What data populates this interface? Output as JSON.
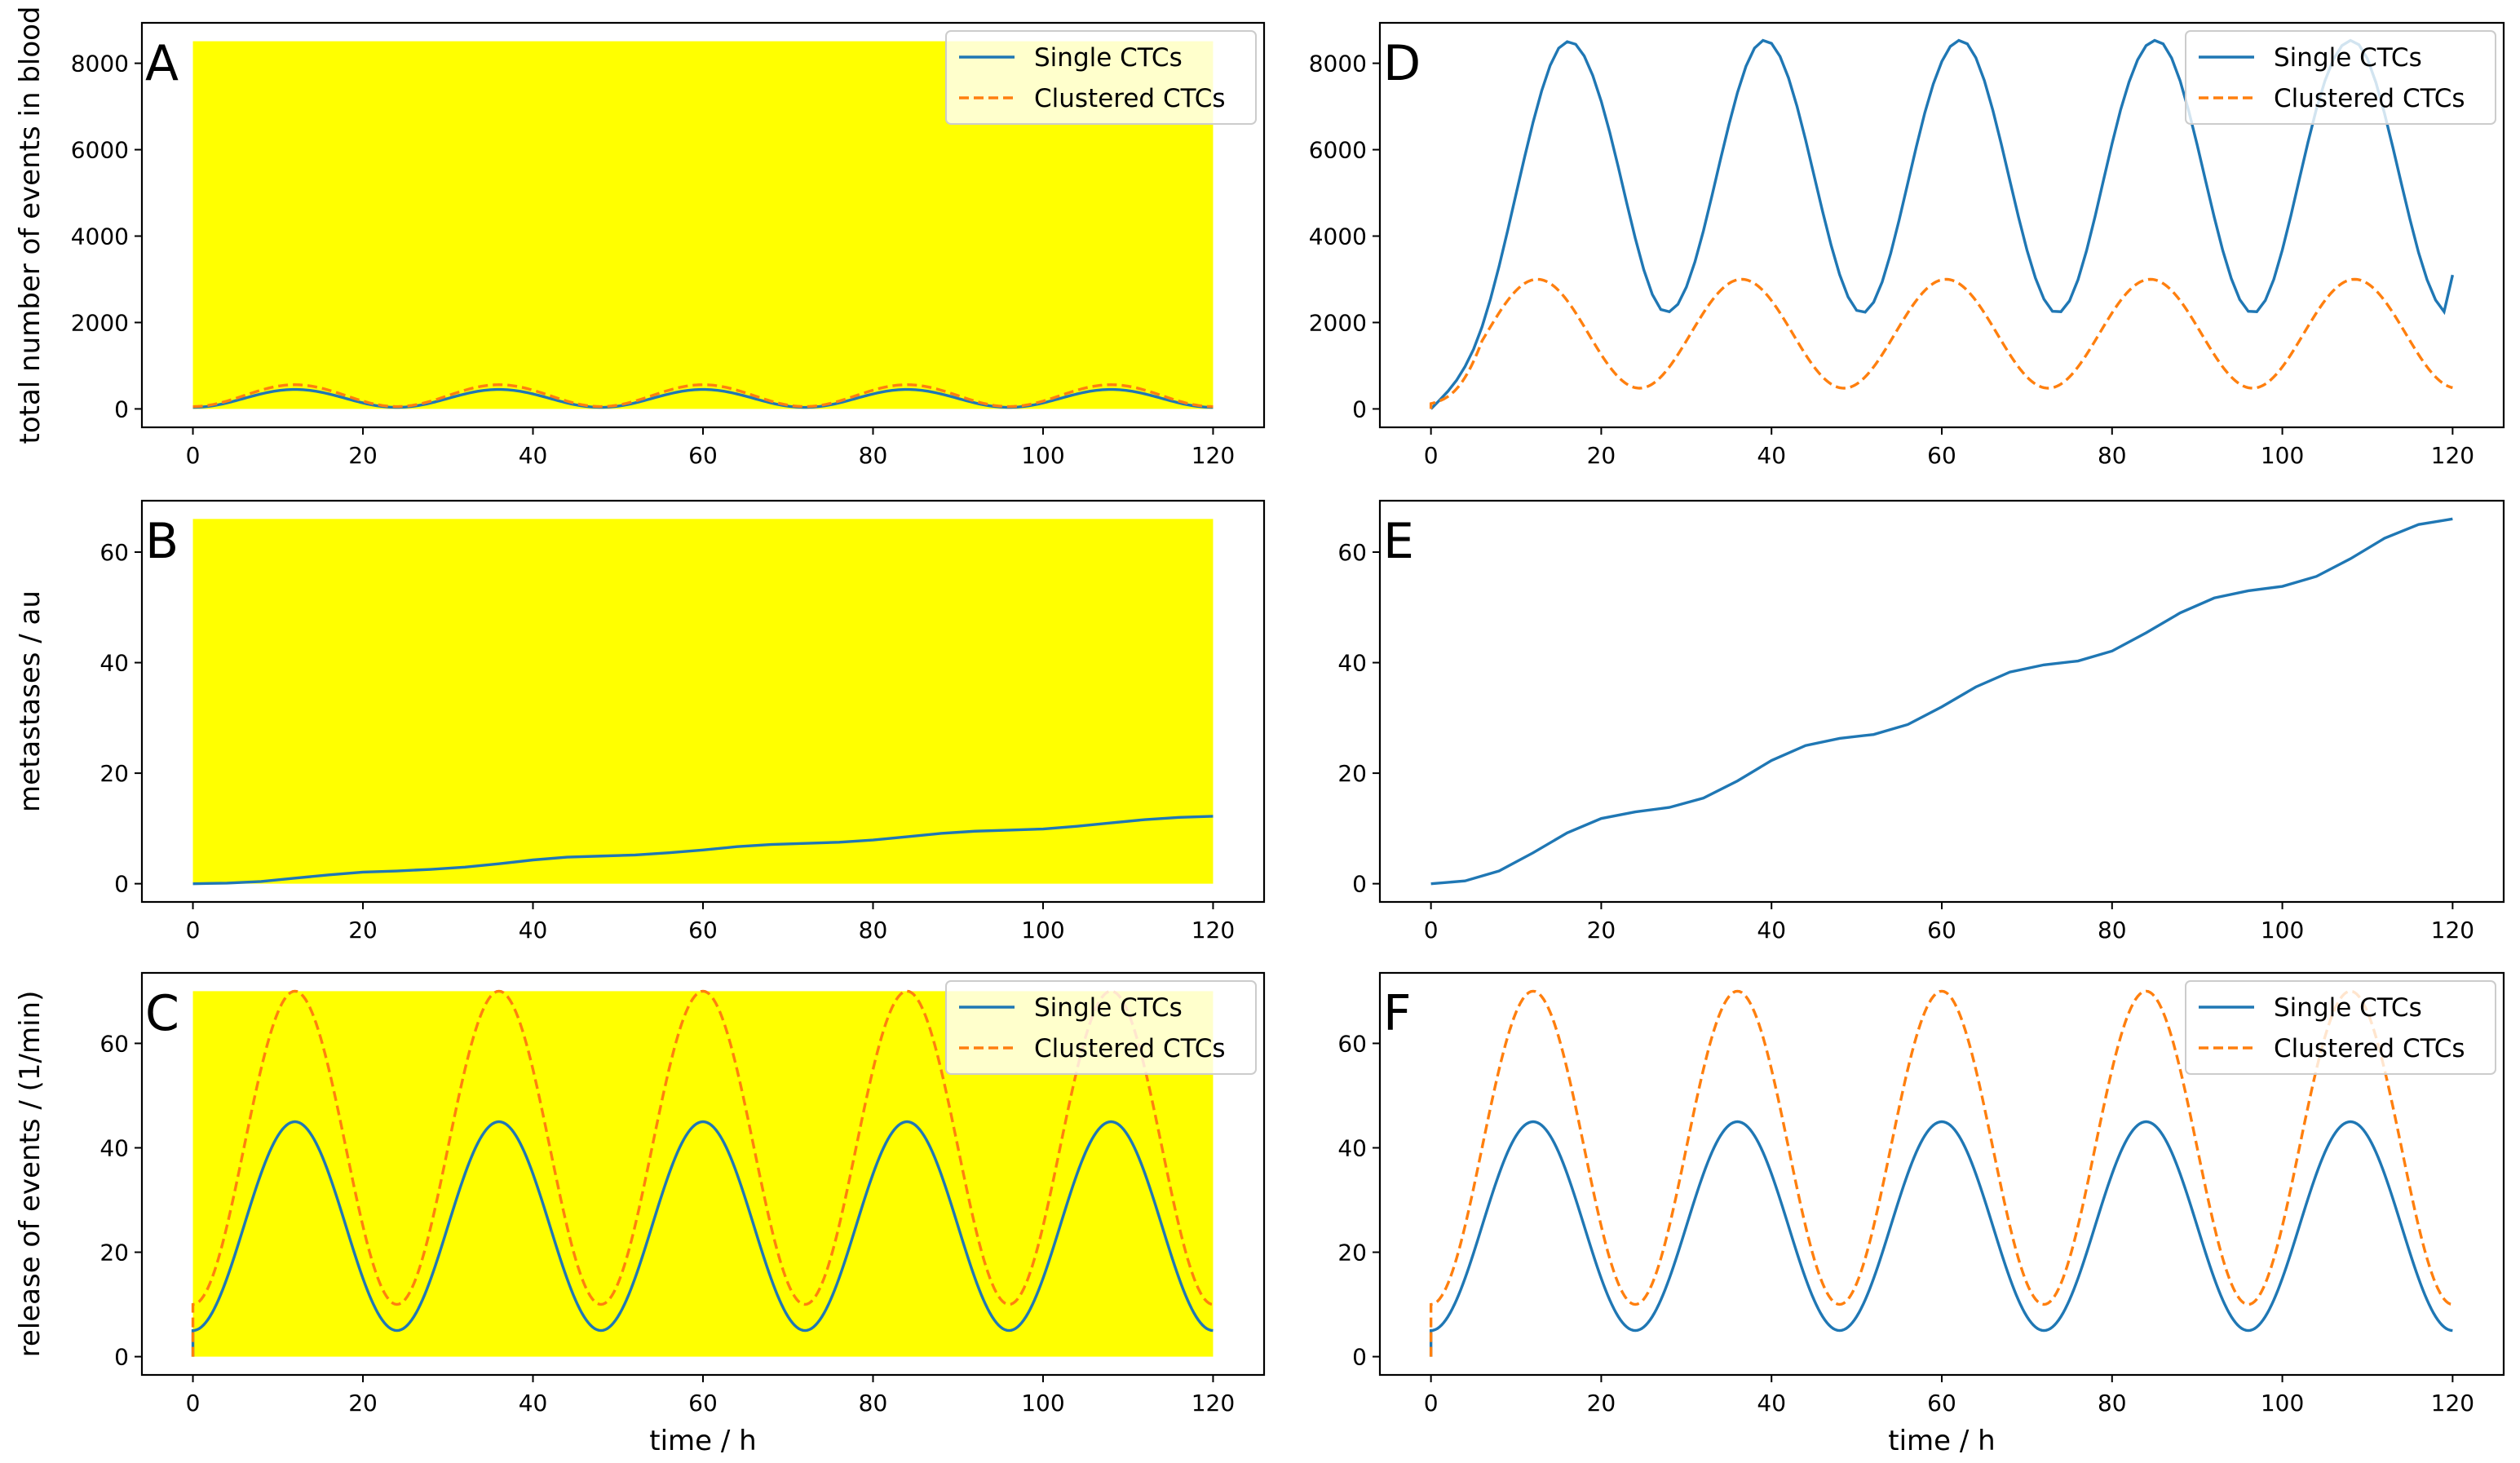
{
  "figure": {
    "series_names": [
      "Single CTCs",
      "Clustered CTCs"
    ],
    "colors": {
      "single": "#1f77b4",
      "clustered": "#ff7f0e",
      "highlight": "#ffff00"
    }
  },
  "chart_data": [
    {
      "panel": "A",
      "type": "line",
      "highlighted": true,
      "xlabel": "",
      "ylabel": "total number of events in blood",
      "xlim": [
        -6,
        126
      ],
      "ylim": [
        -426,
        8936
      ],
      "xticks": [
        0,
        20,
        40,
        60,
        80,
        100,
        120
      ],
      "yticks": [
        0,
        2000,
        4000,
        6000,
        8000
      ],
      "highlight_range": {
        "x": [
          0,
          120
        ],
        "y": [
          0,
          8510
        ]
      },
      "legend": [
        "Single CTCs",
        "Clustered CTCs"
      ],
      "series": [
        {
          "name": "Single CTCs",
          "style": "solid",
          "x_range": [
            0,
            120
          ],
          "formula": "sinusoid",
          "min": 35,
          "max": 450,
          "period": 24,
          "peak_at": 12
        },
        {
          "name": "Clustered CTCs",
          "style": "dashed",
          "x_range": [
            0,
            120
          ],
          "formula": "sinusoid",
          "min": 55,
          "max": 560,
          "period": 24,
          "peak_at": 12
        }
      ]
    },
    {
      "panel": "B",
      "type": "line",
      "highlighted": true,
      "xlabel": "",
      "ylabel": "metastases / au",
      "xlim": [
        -6,
        126
      ],
      "ylim": [
        -3.3,
        69.3
      ],
      "xticks": [
        0,
        20,
        40,
        60,
        80,
        100,
        120
      ],
      "yticks": [
        0,
        20,
        40,
        60
      ],
      "highlight_range": {
        "x": [
          0,
          120
        ],
        "y": [
          0,
          66
        ]
      },
      "legend": [],
      "series": [
        {
          "name": "Single CTCs",
          "style": "solid",
          "x": [
            0,
            4,
            8,
            12,
            16,
            20,
            24,
            28,
            32,
            36,
            40,
            44,
            48,
            52,
            56,
            60,
            64,
            68,
            72,
            76,
            80,
            84,
            88,
            92,
            96,
            100,
            104,
            108,
            112,
            116,
            120
          ],
          "values": [
            0,
            0.1,
            0.4,
            1.0,
            1.6,
            2.1,
            2.3,
            2.6,
            3.0,
            3.6,
            4.3,
            4.8,
            5.0,
            5.2,
            5.6,
            6.1,
            6.7,
            7.1,
            7.3,
            7.5,
            7.9,
            8.5,
            9.1,
            9.5,
            9.7,
            9.9,
            10.4,
            11.0,
            11.6,
            12.0,
            12.2
          ]
        }
      ]
    },
    {
      "panel": "C",
      "type": "line",
      "highlighted": true,
      "xlabel": "time / h",
      "ylabel": "release of events / (1/min)",
      "xlim": [
        -6,
        126
      ],
      "ylim": [
        -3.5,
        73.5
      ],
      "xticks": [
        0,
        20,
        40,
        60,
        80,
        100,
        120
      ],
      "yticks": [
        0,
        20,
        40,
        60
      ],
      "highlight_range": {
        "x": [
          0,
          120
        ],
        "y": [
          0,
          70
        ]
      },
      "legend": [
        "Single CTCs",
        "Clustered CTCs"
      ],
      "series": [
        {
          "name": "Single CTCs",
          "style": "solid",
          "x_range": [
            0,
            120
          ],
          "formula": "sinusoid",
          "min": 5,
          "max": 45,
          "period": 24,
          "peak_at": 12,
          "start_value": 0
        },
        {
          "name": "Clustered CTCs",
          "style": "dashed",
          "x_range": [
            0,
            120
          ],
          "formula": "sinusoid",
          "min": 10,
          "max": 70,
          "period": 24,
          "peak_at": 12,
          "start_value": 0
        }
      ]
    },
    {
      "panel": "D",
      "type": "line",
      "highlighted": false,
      "xlabel": "",
      "ylabel": "",
      "xlim": [
        -6,
        126
      ],
      "ylim": [
        -426,
        8936
      ],
      "xticks": [
        0,
        20,
        40,
        60,
        80,
        100,
        120
      ],
      "yticks": [
        0,
        2000,
        4000,
        6000,
        8000
      ],
      "legend": [
        "Single CTCs",
        "Clustered CTCs"
      ],
      "series": [
        {
          "name": "Single CTCs",
          "style": "solid",
          "x": [
            0,
            1,
            2,
            3,
            4,
            5,
            6,
            7,
            8,
            9,
            10,
            11,
            12,
            13,
            14,
            15,
            16,
            17,
            18,
            19,
            20,
            21,
            22,
            23,
            24,
            25,
            26,
            27,
            28,
            29,
            30,
            31,
            32,
            33,
            34,
            35,
            36,
            37,
            38,
            39,
            40,
            41,
            42,
            43,
            44,
            45,
            46,
            47,
            48,
            49,
            50,
            51,
            52,
            53,
            54,
            55,
            56,
            57,
            58,
            59,
            60,
            61,
            62,
            63,
            64,
            65,
            66,
            67,
            68,
            69,
            70,
            71,
            72,
            73,
            74,
            75,
            76,
            77,
            78,
            79,
            80,
            81,
            82,
            83,
            84,
            85,
            86,
            87,
            88,
            89,
            90,
            91,
            92,
            93,
            94,
            95,
            96,
            97,
            98,
            99,
            100,
            101,
            102,
            103,
            104,
            105,
            106,
            107,
            108,
            109,
            110,
            111,
            112,
            113,
            114,
            115,
            116,
            117,
            118,
            119,
            120
          ],
          "values": [
            0,
            200,
            410,
            660,
            980,
            1380,
            1900,
            2550,
            3300,
            4120,
            4980,
            5830,
            6640,
            7360,
            7950,
            8350,
            8500,
            8440,
            8170,
            7720,
            7120,
            6400,
            5600,
            4760,
            3950,
            3220,
            2650,
            2300,
            2250,
            2420,
            2820,
            3400,
            4120,
            4930,
            5770,
            6580,
            7320,
            7930,
            8350,
            8530,
            8460,
            8160,
            7660,
            7000,
            6230,
            5400,
            4570,
            3790,
            3110,
            2590,
            2280,
            2240,
            2470,
            2940,
            3600,
            4380,
            5220,
            6060,
            6850,
            7520,
            8040,
            8390,
            8530,
            8450,
            8130,
            7600,
            6910,
            6120,
            5280,
            4450,
            3680,
            3030,
            2540,
            2260,
            2250,
            2500,
            2990,
            3660,
            4450,
            5300,
            6140,
            6920,
            7570,
            8080,
            8410,
            8530,
            8450,
            8120,
            7590,
            6900,
            6110,
            5270,
            4440,
            3670,
            3020,
            2530,
            2260,
            2250,
            2510,
            3000,
            3680,
            4470,
            5320,
            6160,
            6940,
            7590,
            8090,
            8410,
            8530,
            8430,
            8100,
            7550,
            6840,
            6040,
            5200,
            4380,
            3620,
            2990,
            2520,
            2250,
            3100
          ]
        },
        {
          "name": "Clustered CTCs",
          "style": "dashed",
          "x_range": [
            0,
            120
          ],
          "formula": "sinusoid_rise",
          "min": 480,
          "max": 3000,
          "period": 24,
          "peak_at": 12.5,
          "start_value": 0
        }
      ]
    },
    {
      "panel": "E",
      "type": "line",
      "highlighted": false,
      "xlabel": "",
      "ylabel": "",
      "xlim": [
        -6,
        126
      ],
      "ylim": [
        -3.3,
        69.3
      ],
      "xticks": [
        0,
        20,
        40,
        60,
        80,
        100,
        120
      ],
      "yticks": [
        0,
        20,
        40,
        60
      ],
      "legend": [],
      "series": [
        {
          "name": "Single CTCs",
          "style": "solid",
          "x": [
            0,
            4,
            8,
            12,
            16,
            20,
            24,
            28,
            32,
            36,
            40,
            44,
            48,
            52,
            56,
            60,
            64,
            68,
            72,
            76,
            80,
            84,
            88,
            92,
            96,
            100,
            104,
            108,
            112,
            116,
            120
          ],
          "values": [
            0,
            0.5,
            2.3,
            5.6,
            9.2,
            11.8,
            13.0,
            13.8,
            15.5,
            18.6,
            22.3,
            25.0,
            26.3,
            27.0,
            28.8,
            32.0,
            35.6,
            38.3,
            39.6,
            40.3,
            42.1,
            45.4,
            49.0,
            51.7,
            53.0,
            53.8,
            55.6,
            58.8,
            62.5,
            65.0,
            66.0
          ]
        }
      ]
    },
    {
      "panel": "F",
      "type": "line",
      "highlighted": false,
      "xlabel": "time / h",
      "ylabel": "",
      "xlim": [
        -6,
        126
      ],
      "ylim": [
        -3.5,
        73.5
      ],
      "xticks": [
        0,
        20,
        40,
        60,
        80,
        100,
        120
      ],
      "yticks": [
        0,
        20,
        40,
        60
      ],
      "legend": [
        "Single CTCs",
        "Clustered CTCs"
      ],
      "series": [
        {
          "name": "Single CTCs",
          "style": "solid",
          "x_range": [
            0,
            120
          ],
          "formula": "sinusoid",
          "min": 5,
          "max": 45,
          "period": 24,
          "peak_at": 12,
          "start_value": 0
        },
        {
          "name": "Clustered CTCs",
          "style": "dashed",
          "x_range": [
            0,
            120
          ],
          "formula": "sinusoid",
          "min": 10,
          "max": 70,
          "period": 24,
          "peak_at": 12,
          "start_value": 0
        }
      ]
    }
  ]
}
